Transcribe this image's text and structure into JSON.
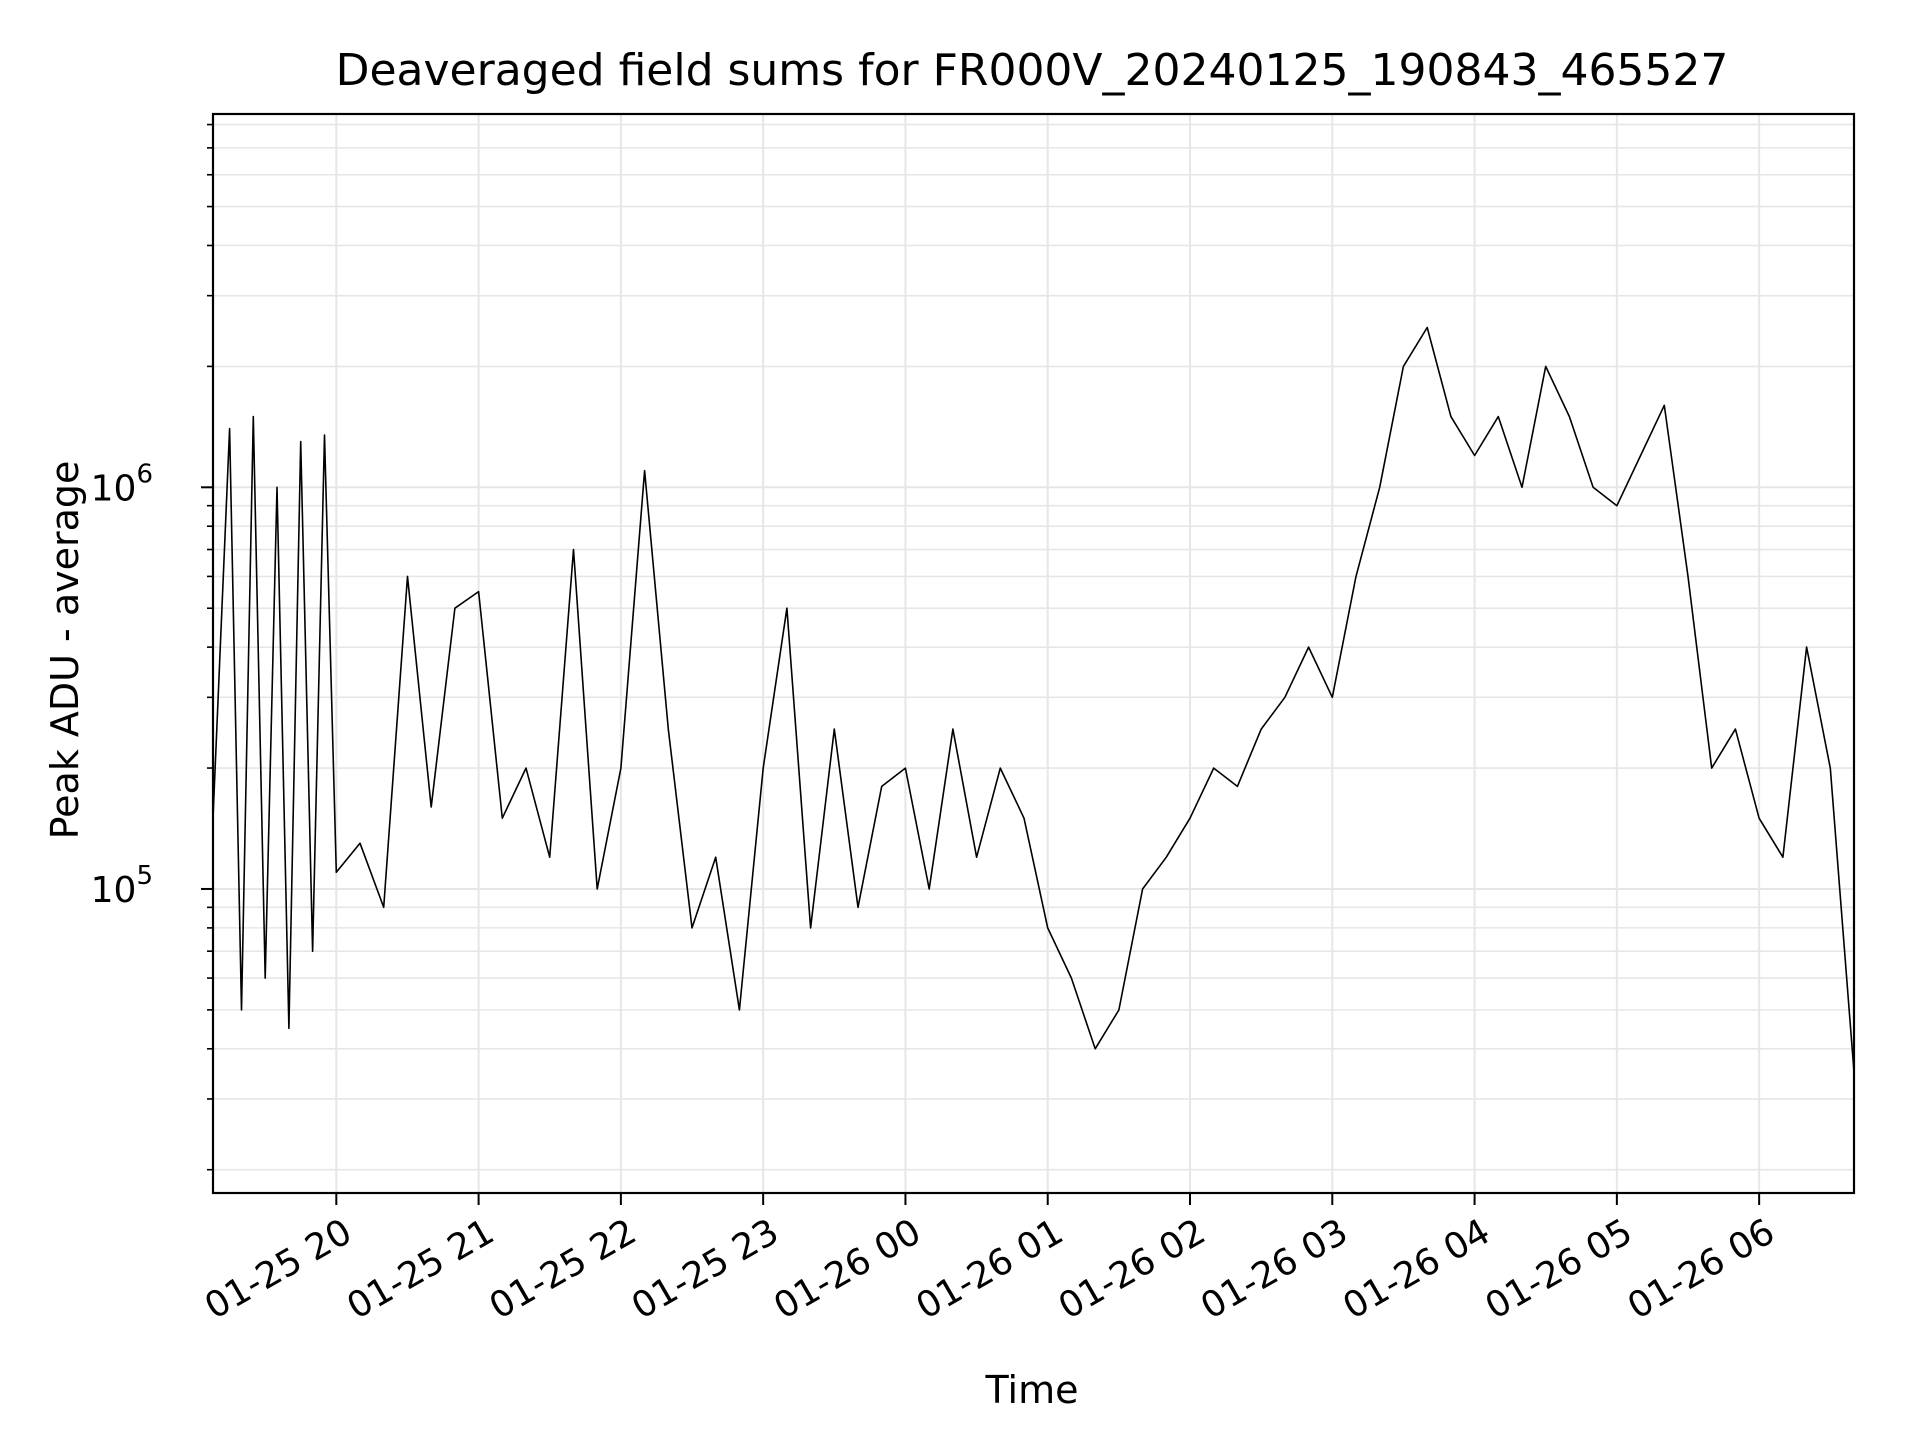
{
  "chart_data": {
    "type": "line",
    "title": "Deaveraged field sums for FR000V_20240125_190843_465527",
    "xlabel": "Time",
    "ylabel": "Peak ADU - average",
    "yscale": "log",
    "xlim": [
      "2024-01-25 19:08",
      "2024-01-26 06:40"
    ],
    "ylim": [
      17500,
      8500000
    ],
    "grid": true,
    "x_ticks": [
      {
        "t": "2024-01-25 20:00",
        "label": "01-25 20"
      },
      {
        "t": "2024-01-25 21:00",
        "label": "01-25 21"
      },
      {
        "t": "2024-01-25 22:00",
        "label": "01-25 22"
      },
      {
        "t": "2024-01-25 23:00",
        "label": "01-25 23"
      },
      {
        "t": "2024-01-26 00:00",
        "label": "01-26 00"
      },
      {
        "t": "2024-01-26 01:00",
        "label": "01-26 01"
      },
      {
        "t": "2024-01-26 02:00",
        "label": "01-26 02"
      },
      {
        "t": "2024-01-26 03:00",
        "label": "01-26 03"
      },
      {
        "t": "2024-01-26 04:00",
        "label": "01-26 04"
      },
      {
        "t": "2024-01-26 05:00",
        "label": "01-26 05"
      },
      {
        "t": "2024-01-26 06:00",
        "label": "01-26 06"
      }
    ],
    "y_ticks": [
      {
        "value": 100000,
        "base": "10",
        "exp": "5"
      },
      {
        "value": 1000000,
        "base": "10",
        "exp": "6"
      }
    ],
    "line_color": "#000000",
    "grid_color": "#e6e6e6",
    "series": [
      {
        "x": [
          "2024-01-25 19:08",
          "2024-01-25 19:15",
          "2024-01-25 19:20",
          "2024-01-25 19:25",
          "2024-01-25 19:30",
          "2024-01-25 19:35",
          "2024-01-25 19:40",
          "2024-01-25 19:45",
          "2024-01-25 19:50",
          "2024-01-25 19:55",
          "2024-01-25 20:00",
          "2024-01-25 20:10",
          "2024-01-25 20:20",
          "2024-01-25 20:30",
          "2024-01-25 20:40",
          "2024-01-25 20:50",
          "2024-01-25 21:00",
          "2024-01-25 21:10",
          "2024-01-25 21:20",
          "2024-01-25 21:30",
          "2024-01-25 21:40",
          "2024-01-25 21:50",
          "2024-01-25 22:00",
          "2024-01-25 22:10",
          "2024-01-25 22:20",
          "2024-01-25 22:30",
          "2024-01-25 22:40",
          "2024-01-25 22:50",
          "2024-01-25 23:00",
          "2024-01-25 23:10",
          "2024-01-25 23:20",
          "2024-01-25 23:30",
          "2024-01-25 23:40",
          "2024-01-25 23:50",
          "2024-01-26 00:00",
          "2024-01-26 00:10",
          "2024-01-26 00:20",
          "2024-01-26 00:30",
          "2024-01-26 00:40",
          "2024-01-26 00:50",
          "2024-01-26 01:00",
          "2024-01-26 01:10",
          "2024-01-26 01:20",
          "2024-01-26 01:30",
          "2024-01-26 01:40",
          "2024-01-26 01:50",
          "2024-01-26 02:00",
          "2024-01-26 02:10",
          "2024-01-26 02:20",
          "2024-01-26 02:30",
          "2024-01-26 02:40",
          "2024-01-26 02:50",
          "2024-01-26 03:00",
          "2024-01-26 03:10",
          "2024-01-26 03:20",
          "2024-01-26 03:30",
          "2024-01-26 03:40",
          "2024-01-26 03:50",
          "2024-01-26 04:00",
          "2024-01-26 04:10",
          "2024-01-26 04:20",
          "2024-01-26 04:30",
          "2024-01-26 04:40",
          "2024-01-26 04:50",
          "2024-01-26 05:00",
          "2024-01-26 05:10",
          "2024-01-26 05:20",
          "2024-01-26 05:30",
          "2024-01-26 05:40",
          "2024-01-26 05:50",
          "2024-01-26 06:00",
          "2024-01-26 06:10",
          "2024-01-26 06:20",
          "2024-01-26 06:30",
          "2024-01-26 06:40"
        ],
        "y": [
          150000,
          1400000,
          50000,
          1500000,
          60000,
          1000000,
          45000,
          1300000,
          70000,
          1350000,
          110000,
          130000,
          90000,
          600000,
          160000,
          500000,
          550000,
          150000,
          200000,
          120000,
          700000,
          100000,
          200000,
          1100000,
          250000,
          80000,
          120000,
          50000,
          200000,
          500000,
          80000,
          250000,
          90000,
          180000,
          200000,
          100000,
          250000,
          120000,
          200000,
          150000,
          80000,
          60000,
          40000,
          50000,
          100000,
          120000,
          150000,
          200000,
          180000,
          250000,
          300000,
          400000,
          300000,
          600000,
          1000000,
          2000000,
          2500000,
          1500000,
          1200000,
          1500000,
          1000000,
          2000000,
          1500000,
          1000000,
          900000,
          1200000,
          1600000,
          600000,
          200000,
          250000,
          150000,
          120000,
          400000,
          200000,
          35000
        ]
      }
    ]
  }
}
